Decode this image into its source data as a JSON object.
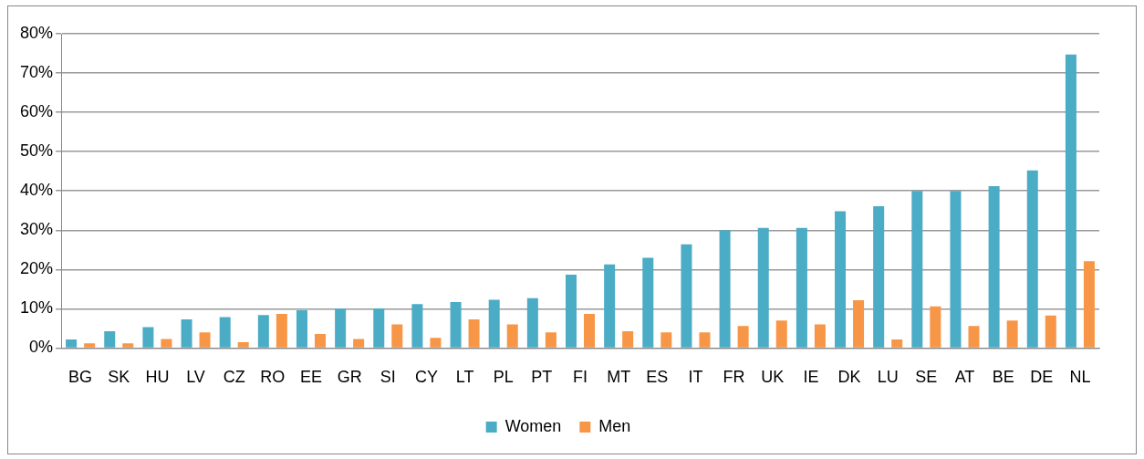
{
  "chart_data": {
    "type": "bar",
    "categories": [
      "BG",
      "SK",
      "HU",
      "LV",
      "CZ",
      "RO",
      "EE",
      "GR",
      "SI",
      "CY",
      "LT",
      "PL",
      "PT",
      "FI",
      "MT",
      "ES",
      "IT",
      "FR",
      "UK",
      "IE",
      "DK",
      "LU",
      "SE",
      "AT",
      "BE",
      "DE",
      "NL"
    ],
    "series": [
      {
        "name": "Women",
        "color": "#4bacc6",
        "values": [
          2.2,
          4.3,
          5.3,
          7.3,
          7.9,
          8.4,
          9.6,
          10,
          10.1,
          11.2,
          11.7,
          12.3,
          12.7,
          18.7,
          21.3,
          23,
          26.4,
          30,
          30.6,
          30.6,
          34.8,
          36.1,
          40,
          40,
          41.2,
          45.2,
          74.7
        ]
      },
      {
        "name": "Men",
        "color": "#f79646",
        "values": [
          1.2,
          1.2,
          2.3,
          4,
          1.5,
          8.7,
          3.6,
          2.3,
          6,
          2.6,
          7.3,
          6,
          4,
          8.7,
          4.3,
          4,
          4,
          5.6,
          7,
          6,
          12.2,
          2.2,
          10.6,
          5.6,
          7,
          8.3,
          22.1
        ]
      }
    ],
    "ylim": [
      0,
      80
    ],
    "yticks": [
      {
        "value": 0,
        "label": "0%"
      },
      {
        "value": 10,
        "label": "10%"
      },
      {
        "value": 20,
        "label": "20%"
      },
      {
        "value": 30,
        "label": "30%"
      },
      {
        "value": 40,
        "label": "40%"
      },
      {
        "value": 50,
        "label": "50%"
      },
      {
        "value": 60,
        "label": "60%"
      },
      {
        "value": 70,
        "label": "70%"
      },
      {
        "value": 80,
        "label": "80%"
      }
    ],
    "grid": "y",
    "legend": "bottom"
  }
}
